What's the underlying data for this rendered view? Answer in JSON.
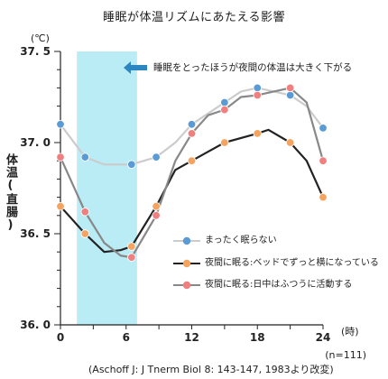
{
  "chart_data": {
    "type": "line",
    "title": "睡眠が体温リズムにあたえる影響",
    "ylabel": "体温(直腸)",
    "y_unit": "(℃)",
    "x_unit": "(時)",
    "xlim": [
      0,
      24
    ],
    "ylim": [
      36.0,
      37.5
    ],
    "x_ticks": [
      "0",
      "6",
      "12",
      "18",
      "24"
    ],
    "y_ticks": [
      "36. 0",
      "36. 5",
      "37. 0",
      "37. 5"
    ],
    "shaded_region": [
      1.5,
      7.0
    ],
    "annotation": "睡眠をとったほうが夜間の体温は大きく下がる",
    "series": [
      {
        "name": "まったく眠らない",
        "line_color": "#cccccc",
        "marker_color": "#5b9bd5",
        "points": [
          [
            0,
            37.1
          ],
          [
            2.25,
            36.92
          ],
          [
            6.5,
            36.88
          ],
          [
            8.75,
            36.92
          ],
          [
            12,
            37.1
          ],
          [
            15,
            37.22
          ],
          [
            18,
            37.3
          ],
          [
            21,
            37.26
          ],
          [
            24,
            37.08
          ]
        ],
        "line": [
          [
            0,
            37.1
          ],
          [
            2.25,
            36.92
          ],
          [
            4,
            36.88
          ],
          [
            6.5,
            36.88
          ],
          [
            8.75,
            36.92
          ],
          [
            10.5,
            37.0
          ],
          [
            12,
            37.1
          ],
          [
            15,
            37.22
          ],
          [
            16.5,
            37.28
          ],
          [
            18,
            37.3
          ],
          [
            21,
            37.26
          ],
          [
            22.5,
            37.2
          ],
          [
            24,
            37.08
          ]
        ]
      },
      {
        "name": "夜間に眠る:ベッドでずっと横になっている",
        "line_color": "#222222",
        "marker_color": "#f4a460",
        "points": [
          [
            0,
            36.65
          ],
          [
            2.25,
            36.5
          ],
          [
            6.5,
            36.43
          ],
          [
            8.75,
            36.65
          ],
          [
            12,
            36.9
          ],
          [
            15,
            37.0
          ],
          [
            18,
            37.05
          ],
          [
            21,
            37.0
          ],
          [
            24,
            36.7
          ]
        ],
        "line": [
          [
            0,
            36.65
          ],
          [
            2.25,
            36.5
          ],
          [
            4,
            36.4
          ],
          [
            5.5,
            36.41
          ],
          [
            6.5,
            36.43
          ],
          [
            8.75,
            36.65
          ],
          [
            10.5,
            36.85
          ],
          [
            12,
            36.9
          ],
          [
            13.5,
            36.95
          ],
          [
            15,
            37.0
          ],
          [
            18,
            37.05
          ],
          [
            19,
            37.07
          ],
          [
            21,
            37.0
          ],
          [
            22.5,
            36.9
          ],
          [
            24,
            36.7
          ]
        ]
      },
      {
        "name": "夜間に眠る:日中はふつうに活動する",
        "line_color": "#888888",
        "marker_color": "#f08080",
        "points": [
          [
            0,
            36.92
          ],
          [
            2.25,
            36.62
          ],
          [
            6.5,
            36.37
          ],
          [
            8.75,
            36.6
          ],
          [
            12,
            37.05
          ],
          [
            15,
            37.18
          ],
          [
            18,
            37.26
          ],
          [
            21,
            37.3
          ],
          [
            24,
            36.9
          ]
        ],
        "line": [
          [
            0,
            36.92
          ],
          [
            2.25,
            36.62
          ],
          [
            4,
            36.45
          ],
          [
            5.5,
            36.38
          ],
          [
            6.5,
            36.37
          ],
          [
            8.75,
            36.6
          ],
          [
            10.5,
            36.9
          ],
          [
            12,
            37.05
          ],
          [
            13.5,
            37.15
          ],
          [
            15,
            37.18
          ],
          [
            16.5,
            37.25
          ],
          [
            18,
            37.26
          ],
          [
            19.5,
            37.28
          ],
          [
            21,
            37.3
          ],
          [
            22.5,
            37.22
          ],
          [
            24,
            36.9
          ]
        ]
      }
    ],
    "n_label": "(n=111)",
    "source": "(Aschoff J: J Tnerm Biol 8: 143-147, 1983より改変)"
  }
}
